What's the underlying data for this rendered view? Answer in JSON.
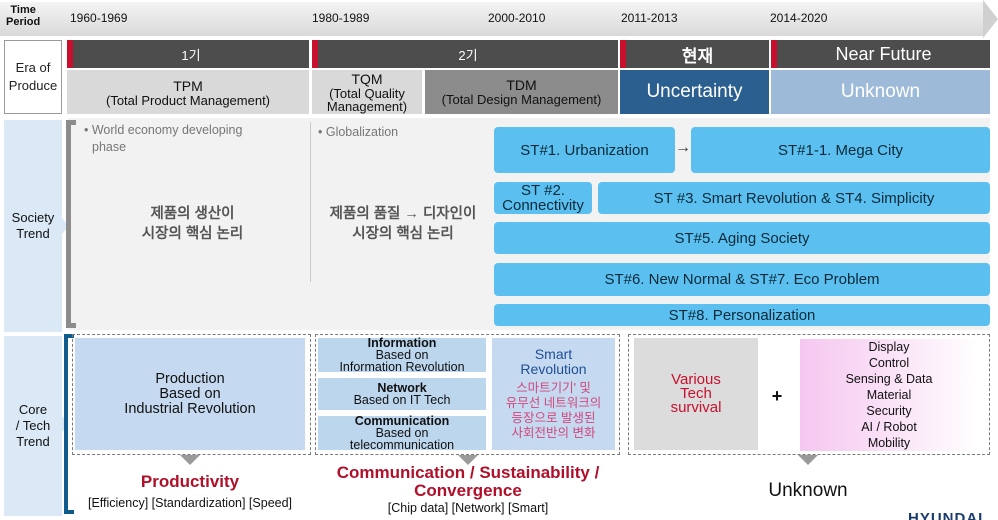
{
  "timeline": {
    "title_line1": "Time",
    "title_line2": "Period",
    "periods": [
      "1960-1969",
      "1980-1989",
      "2000-2010",
      "2011-2013",
      "2014-2020"
    ]
  },
  "categories": {
    "era_line1": "Era of",
    "era_line2": "Produce",
    "society_line1": "Society",
    "society_line2": "Trend",
    "core_line1": "Core",
    "core_line2": "/ Tech",
    "core_line3": "Trend"
  },
  "eras": {
    "gen1": "1기",
    "gen2": "2기",
    "current": "현재",
    "near_future": "Near Future",
    "tpm_title": "TPM",
    "tpm_sub": "(Total Product Management)",
    "tqm_title": "TQM",
    "tqm_sub1": "(Total Quality",
    "tqm_sub2": "Management)",
    "tdm_title": "TDM",
    "tdm_sub": "(Total Design Management)",
    "uncertainty": "Uncertainty",
    "unknown": "Unknown"
  },
  "society": {
    "col1_bullet1": "World economy developing",
    "col1_bullet2": "phase",
    "col1_kor1": "제품의 생산이",
    "col1_kor2": "시장의 핵심 논리",
    "col2_bullet": "Globalization",
    "col2_kor1": "제품의 품질 → 디자인이",
    "col2_kor2": "시장의 핵심 논리",
    "st1": "ST#1. Urbanization",
    "st1_1": "ST#1-1. Mega City",
    "st2_line1": "ST #2.",
    "st2_line2": "Connectivity",
    "st3": "ST #3. Smart Revolution & ST4. Simplicity",
    "st5": "ST#5. Aging Society",
    "st6": "ST#6. New Normal & ST#7. Eco Problem",
    "st8": "ST#8. Personalization",
    "arrow": "→"
  },
  "core": {
    "prod_line1": "Production",
    "prod_line2": "Based on",
    "prod_line3": "Industrial Revolution",
    "info_title": "Information",
    "info_sub1": "Based on",
    "info_sub2": "Information Revolution",
    "net_title": "Network",
    "net_sub": "Based on IT Tech",
    "comm_title": "Communication",
    "comm_sub1": "Based on",
    "comm_sub2": "telecommunication",
    "smart_title1": "Smart",
    "smart_title2": "Revolution",
    "smart_kor1": "스마트기기' 및",
    "smart_kor2": "유무선 네트워크의",
    "smart_kor3": "등장으로 발생된",
    "smart_kor4": "사회전반의 변화",
    "various1": "Various",
    "various2": "Tech",
    "various3": "survival",
    "plus": "+",
    "tech_list": [
      "Display",
      "Control",
      "Sensing & Data",
      "Material",
      "Security",
      "AI / Robot",
      "Mobility"
    ]
  },
  "bottom": {
    "productivity": "Productivity",
    "productivity_sub": "[Efficiency] [Standardization] [Speed]",
    "comm_line1": "Communication / Sustainability /",
    "comm_line2": "Convergence",
    "comm_sub": "[Chip data] [Network] [Smart]",
    "unknown": "Unknown"
  },
  "logo": "HYUNDAI",
  "colors": {
    "accent_red": "#c8102e",
    "header_dark": "#4d4d4d",
    "trend_blue": "#5bc0f0",
    "uncertainty_blue": "#2b5f8f",
    "unknown_blue": "#9dbbd9"
  }
}
